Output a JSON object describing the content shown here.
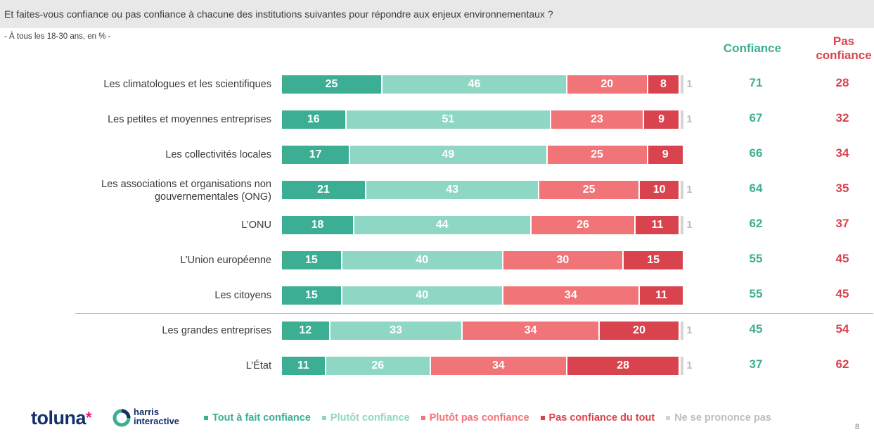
{
  "question": "Et faites-vous confiance ou pas confiance à chacune des institutions suivantes pour répondre aux enjeux environnementaux ?",
  "base": "- À tous les 18-30 ans, en % -",
  "columns": {
    "confiance": "Confiance",
    "pas_confiance": "Pas confiance"
  },
  "colors": {
    "tout_a_fait": "#3cae93",
    "plutot": "#8fd7c5",
    "plutot_pas": "#f07478",
    "pas_du_tout": "#d9434d",
    "nsp": "#d4d4d4"
  },
  "chart_data": {
    "type": "bar",
    "orientation": "horizontal",
    "stacked": true,
    "categories": [
      "Les climatologues et les scientifiques",
      "Les petites et moyennes entreprises",
      "Les collectivités locales",
      "Les associations et organisations non gouvernementales (ONG)",
      "L’ONU",
      "L’Union européenne",
      "Les citoyens",
      "Les grandes entreprises",
      "L’État"
    ],
    "series": [
      {
        "name": "Tout à fait confiance",
        "values": [
          25,
          16,
          17,
          21,
          18,
          15,
          15,
          12,
          11
        ]
      },
      {
        "name": "Plutôt confiance",
        "values": [
          46,
          51,
          49,
          43,
          44,
          40,
          40,
          33,
          26
        ]
      },
      {
        "name": "Plutôt pas confiance",
        "values": [
          20,
          23,
          25,
          25,
          26,
          30,
          34,
          34,
          34
        ]
      },
      {
        "name": "Pas confiance du tout",
        "values": [
          8,
          9,
          9,
          10,
          11,
          15,
          11,
          20,
          28
        ]
      },
      {
        "name": "Ne se prononce pas",
        "values": [
          1,
          1,
          null,
          1,
          1,
          null,
          null,
          1,
          1
        ]
      }
    ],
    "totals": {
      "confiance": [
        71,
        67,
        66,
        64,
        62,
        55,
        55,
        45,
        37
      ],
      "pas_confiance": [
        28,
        32,
        34,
        35,
        37,
        45,
        45,
        54,
        62
      ]
    },
    "legend_position": "bottom"
  },
  "footer": {
    "brand": "toluna",
    "brand_star": "*",
    "partner_line1": "harris",
    "partner_line2": "interactive",
    "page_number": "8"
  }
}
